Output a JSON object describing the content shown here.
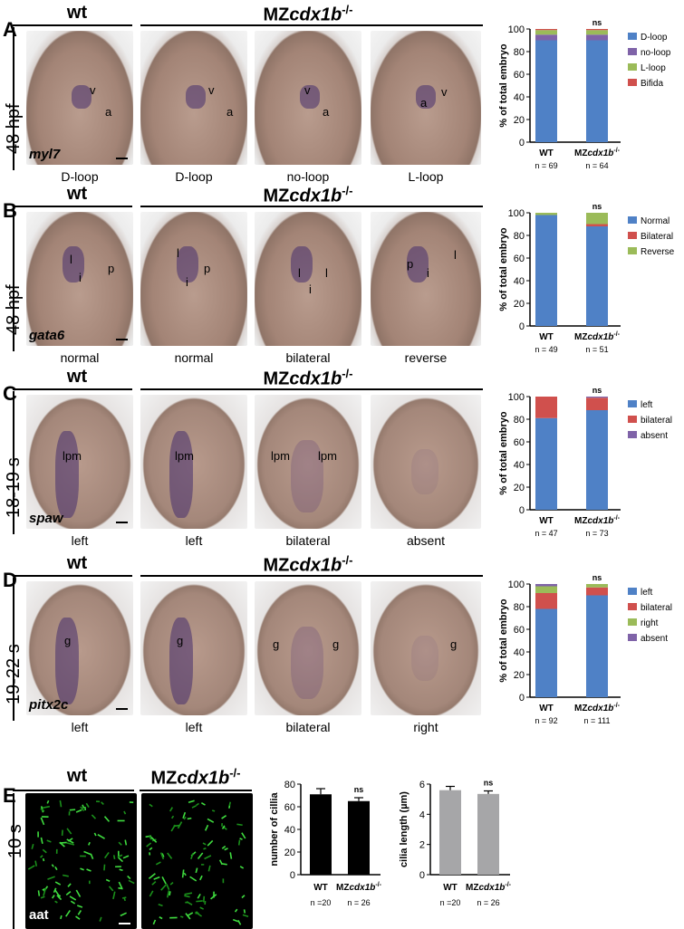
{
  "wt_label": "wt",
  "mz_label_prefix": "MZ",
  "mz_label_gene": "cdx1b",
  "mz_label_sup": "-/-",
  "rows": [
    {
      "letter": "A",
      "stage": "48 hpf",
      "gene": "myl7",
      "captions": [
        "D-loop",
        "D-loop",
        "no-loop",
        "L-loop"
      ],
      "marks": [
        [
          "v",
          "a"
        ],
        [
          "v",
          "a"
        ],
        [
          "v",
          "a"
        ],
        [
          "a",
          "v"
        ]
      ]
    },
    {
      "letter": "B",
      "stage": "48 hpf",
      "gene": "gata6",
      "captions": [
        "normal",
        "normal",
        "bilateral",
        "reverse"
      ],
      "marks": [
        [
          "l",
          "i",
          "p"
        ],
        [
          "l",
          "i",
          "p"
        ],
        [
          "l",
          "i",
          "l"
        ],
        [
          "p",
          "i",
          "l"
        ]
      ]
    },
    {
      "letter": "C",
      "stage": "18-19 s",
      "gene": "spaw",
      "captions": [
        "left",
        "left",
        "bilateral",
        "absent"
      ],
      "marks": [
        [
          "lpm"
        ],
        [
          "lpm"
        ],
        [
          "lpm",
          "lpm"
        ],
        []
      ]
    },
    {
      "letter": "D",
      "stage": "19-22 s",
      "gene": "pitx2c",
      "captions": [
        "left",
        "left",
        "bilateral",
        "right"
      ],
      "marks": [
        [
          "g"
        ],
        [
          "g"
        ],
        [
          "g",
          "g"
        ],
        [
          "g"
        ]
      ]
    }
  ],
  "rowE": {
    "letter": "E",
    "stage": "10 s",
    "gene": "aat"
  },
  "colors": {
    "blue": "#4f81c6",
    "red": "#d0504d",
    "green": "#9bbb59",
    "purple": "#7f63a8",
    "black": "#000000",
    "gray": "#a6a6a8"
  },
  "chart_data": [
    {
      "type": "bar",
      "stacked": true,
      "ylabel": "% of total embryo",
      "ylim": [
        0,
        100
      ],
      "yticks": [
        0,
        20,
        40,
        60,
        80,
        100
      ],
      "categories": [
        "WT",
        "MZcdx1b-/-"
      ],
      "n_labels": [
        "n = 69",
        "n = 64"
      ],
      "annotation": "ns",
      "series": [
        {
          "name": "D-loop",
          "color": "#4f81c6",
          "values": [
            90,
            90
          ]
        },
        {
          "name": "no-loop",
          "color": "#7f63a8",
          "values": [
            5,
            5
          ]
        },
        {
          "name": "L-loop",
          "color": "#9bbb59",
          "values": [
            4,
            4
          ]
        },
        {
          "name": "Bifida",
          "color": "#d0504d",
          "values": [
            1,
            1
          ]
        }
      ]
    },
    {
      "type": "bar",
      "stacked": true,
      "ylabel": "% of total embryo",
      "ylim": [
        0,
        100
      ],
      "yticks": [
        0,
        20,
        40,
        60,
        80,
        100
      ],
      "categories": [
        "WT",
        "MZcdx1b-/-"
      ],
      "n_labels": [
        "n = 49",
        "n = 51"
      ],
      "annotation": "ns",
      "series": [
        {
          "name": "Normal",
          "color": "#4f81c6",
          "values": [
            98,
            88
          ]
        },
        {
          "name": "Bilateral",
          "color": "#d0504d",
          "values": [
            0,
            2
          ]
        },
        {
          "name": "Reverse",
          "color": "#9bbb59",
          "values": [
            2,
            10
          ]
        }
      ]
    },
    {
      "type": "bar",
      "stacked": true,
      "ylabel": "% of total embryo",
      "ylim": [
        0,
        100
      ],
      "yticks": [
        0,
        20,
        40,
        60,
        80,
        100
      ],
      "categories": [
        "WT",
        "MZcdx1b-/-"
      ],
      "n_labels": [
        "n =  47",
        "n = 73"
      ],
      "annotation": "ns",
      "series": [
        {
          "name": "left",
          "color": "#4f81c6",
          "values": [
            81,
            88
          ]
        },
        {
          "name": "bilateral",
          "color": "#d0504d",
          "values": [
            19,
            11
          ]
        },
        {
          "name": "absent",
          "color": "#7f63a8",
          "values": [
            0,
            1
          ]
        }
      ]
    },
    {
      "type": "bar",
      "stacked": true,
      "ylabel": "% of total embryo",
      "ylim": [
        0,
        100
      ],
      "yticks": [
        0,
        20,
        40,
        60,
        80,
        100
      ],
      "categories": [
        "WT",
        "MZcdx1b-/-"
      ],
      "n_labels": [
        "n = 92",
        "n = 111"
      ],
      "annotation": "ns",
      "series": [
        {
          "name": "left",
          "color": "#4f81c6",
          "values": [
            78,
            90
          ]
        },
        {
          "name": "bilateral",
          "color": "#d0504d",
          "values": [
            14,
            7
          ]
        },
        {
          "name": "right",
          "color": "#9bbb59",
          "values": [
            6,
            3
          ]
        },
        {
          "name": "absent",
          "color": "#7f63a8",
          "values": [
            2,
            0
          ]
        }
      ]
    },
    {
      "type": "bar",
      "ylabel": "number of cillia",
      "ylim": [
        0,
        80
      ],
      "yticks": [
        0,
        20,
        40,
        60,
        80
      ],
      "categories": [
        "WT",
        "MZcdx1b-/-"
      ],
      "n_labels": [
        "n =20",
        "n = 26"
      ],
      "annotation": "ns",
      "color": "#000000",
      "values": [
        71,
        65
      ],
      "errors": [
        5,
        3
      ]
    },
    {
      "type": "bar",
      "ylabel": "cilia length (µm)",
      "ylim": [
        0,
        6
      ],
      "yticks": [
        0,
        2,
        4,
        6
      ],
      "categories": [
        "WT",
        "MZcdx1b-/-"
      ],
      "n_labels": [
        "n =20",
        "n = 26"
      ],
      "annotation": "ns",
      "color": "#a6a6a8",
      "values": [
        5.6,
        5.35
      ],
      "errors": [
        0.25,
        0.2
      ]
    }
  ]
}
